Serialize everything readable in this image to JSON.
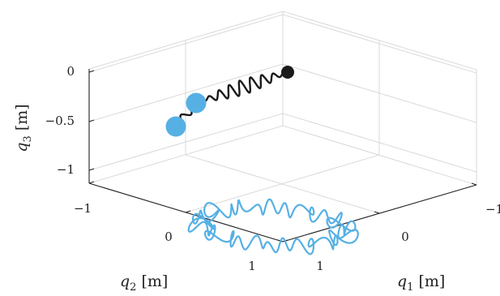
{
  "chart_data": {
    "type": "line",
    "projection": "3d",
    "x_axis": {
      "label_var": "q",
      "label_sub": "1",
      "label_unit": "[m]",
      "ticks": [
        "0",
        "1",
        "−1"
      ],
      "range": [
        -1,
        1
      ]
    },
    "y_axis": {
      "label_var": "q",
      "label_sub": "2",
      "label_unit": "[m]",
      "ticks": [
        "−1",
        "0",
        "1"
      ],
      "range": [
        -1,
        1
      ]
    },
    "z_axis": {
      "label_var": "q",
      "label_sub": "3",
      "label_unit": "[m]",
      "ticks": [
        "0",
        "−0.5",
        "−1"
      ],
      "range": [
        -1.2,
        0
      ]
    },
    "grid": true,
    "colors": {
      "trajectory": "#56b0e4",
      "spring": "#1a1a1a",
      "mass": "#56b0e4",
      "anchor": "#1a1a1a",
      "axis": "#222222",
      "grid": "#d4d4d4"
    },
    "series": [
      {
        "kind": "trajectory",
        "points": []
      },
      {
        "kind": "spring",
        "points": []
      }
    ]
  }
}
